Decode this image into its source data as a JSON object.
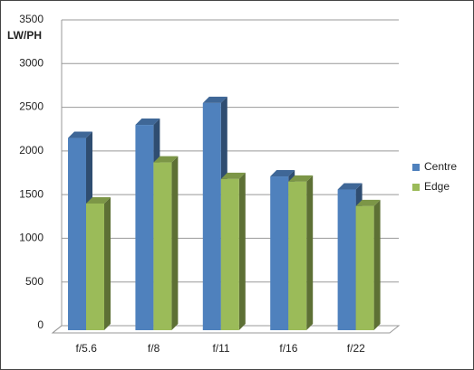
{
  "chart_data": {
    "type": "bar3d",
    "y_label": "LW/PH",
    "categories": [
      "f/5.6",
      "f/8",
      "f/11",
      "f/16",
      "f/22"
    ],
    "series": [
      {
        "name": "Centre",
        "color": "#4f81bd",
        "values": [
          2200,
          2350,
          2600,
          1760,
          1610
        ]
      },
      {
        "name": "Edge",
        "color": "#9bbb59",
        "values": [
          1450,
          1920,
          1730,
          1700,
          1420
        ]
      }
    ],
    "ylim": [
      0,
      3500
    ],
    "yticks": [
      0,
      500,
      1000,
      1500,
      2000,
      2500,
      3000,
      3500
    ],
    "grid": true,
    "legend": "right"
  }
}
